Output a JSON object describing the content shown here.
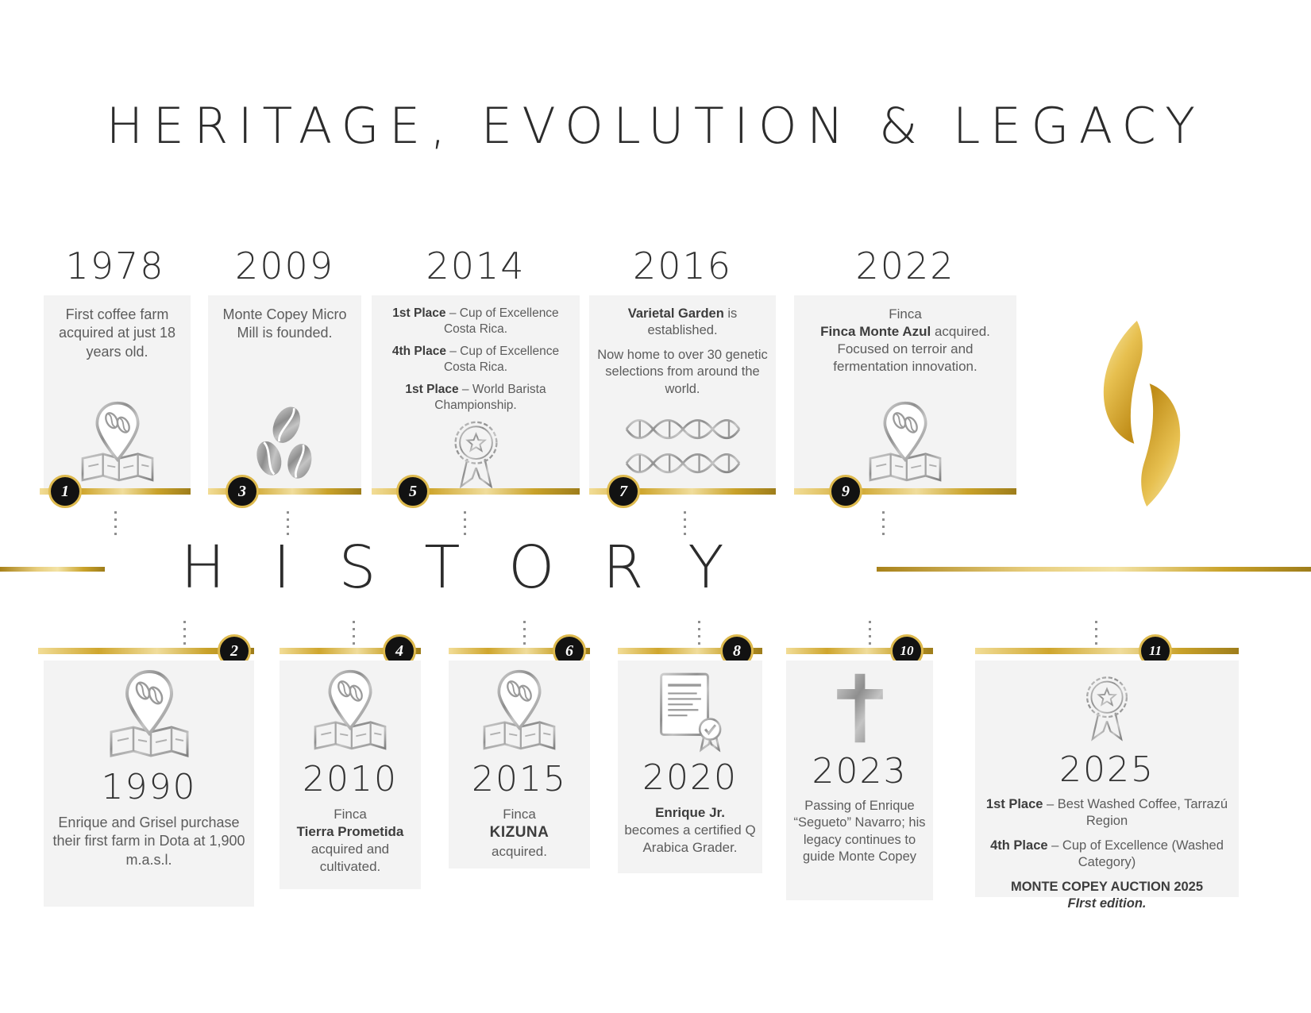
{
  "title": "HERITAGE, EVOLUTION & LEGACY",
  "history_label": "HISTORY",
  "brand": {
    "logo": "flame-icon"
  },
  "colors": {
    "gold": "#C9A227",
    "gold_light": "#F0DA8E",
    "silver": "#9A9A9A",
    "badge_black": "#121212",
    "card_gray": "#F3F3F3",
    "body_text": "#5C5C5C",
    "heading_text": "#2C2C2C"
  },
  "milestones": {
    "m1": {
      "number": "1",
      "year": "1978",
      "icon": "map-pin-icon",
      "paragraphs": [
        {
          "s": [
            {
              "t": "First coffee farm acquired at just 18 years old."
            }
          ]
        }
      ]
    },
    "m2": {
      "number": "2",
      "year": "1990",
      "icon": "map-pin-icon",
      "paragraphs": [
        {
          "s": [
            {
              "t": "Enrique and Grisel purchase their first farm in Dota at 1,900 m.a.s.l."
            }
          ]
        }
      ]
    },
    "m3": {
      "number": "3",
      "year": "2009",
      "icon": "coffee-beans-icon",
      "paragraphs": [
        {
          "s": [
            {
              "t": "Monte Copey Micro Mill is founded."
            }
          ]
        }
      ]
    },
    "m4": {
      "number": "4",
      "year": "2010",
      "icon": "map-pin-icon",
      "paragraphs": [
        {
          "s": [
            {
              "t": "Finca"
            }
          ]
        },
        {
          "s": [
            {
              "t": "Tierra Prometida",
              "b": true
            }
          ]
        },
        {
          "s": [
            {
              "t": "acquired and cultivated."
            }
          ]
        }
      ]
    },
    "m5": {
      "number": "5",
      "year": "2014",
      "icon": "award-medal-icon",
      "paragraphs": [
        {
          "s": [
            {
              "t": "1st Place",
              "b": true
            },
            {
              "t": " – Cup of Excellence Costa Rica."
            }
          ]
        },
        {
          "gap": true,
          "s": [
            {
              "t": "4th Place",
              "b": true
            },
            {
              "t": " – Cup of Excellence Costa Rica."
            }
          ]
        },
        {
          "gap": true,
          "s": [
            {
              "t": "1st Place",
              "b": true
            },
            {
              "t": " – World Barista Championship."
            }
          ]
        }
      ]
    },
    "m6": {
      "number": "6",
      "year": "2015",
      "icon": "map-pin-icon",
      "paragraphs": [
        {
          "s": [
            {
              "t": "Finca"
            }
          ]
        },
        {
          "s": [
            {
              "t": "KIZUNA",
              "b": true,
              "big": true
            }
          ]
        },
        {
          "s": [
            {
              "t": "acquired."
            }
          ]
        }
      ]
    },
    "m7": {
      "number": "7",
      "year": "2016",
      "icon": "dna-icon",
      "paragraphs": [
        {
          "s": [
            {
              "t": "Varietal Garden",
              "b": true
            },
            {
              "t": " is established."
            }
          ]
        },
        {
          "gap": true,
          "s": [
            {
              "t": "Now home to over 30 genetic selections from around the world."
            }
          ]
        }
      ]
    },
    "m8": {
      "number": "8",
      "year": "2020",
      "icon": "certificate-icon",
      "paragraphs": [
        {
          "s": [
            {
              "t": "Enrique Jr.",
              "b": true
            }
          ]
        },
        {
          "s": [
            {
              "t": "becomes a certified Q Arabica Grader."
            }
          ]
        }
      ]
    },
    "m9": {
      "number": "9",
      "year": "2022",
      "icon": "map-pin-icon",
      "paragraphs": [
        {
          "s": [
            {
              "t": "Finca"
            }
          ]
        },
        {
          "s": [
            {
              "t": "Finca Monte Azul",
              "b": true
            },
            {
              "t": " acquired. Focused on terroir and fermentation innovation."
            }
          ]
        }
      ]
    },
    "m10": {
      "number": "10",
      "year": "2023",
      "icon": "cross-icon",
      "paragraphs": [
        {
          "s": [
            {
              "t": "Passing of Enrique “Segueto” Navarro; his legacy continues to guide Monte Copey"
            }
          ]
        }
      ]
    },
    "m11": {
      "number": "11",
      "year": "2025",
      "icon": "award-medal-icon",
      "paragraphs": [
        {
          "s": [
            {
              "t": "1st Place",
              "b": true
            },
            {
              "t": " –  Best Washed Coffee, Tarrazú Region"
            }
          ]
        },
        {
          "gap": true,
          "s": [
            {
              "t": "4th Place",
              "b": true
            },
            {
              "t": " – Cup of Excellence (Washed Category)"
            }
          ]
        },
        {
          "gap": true,
          "s": [
            {
              "t": "MONTE COPEY AUCTION 2025",
              "b": true
            }
          ]
        },
        {
          "s": [
            {
              "t": "FIrst edition.",
              "b": true,
              "i": true
            }
          ]
        }
      ]
    }
  }
}
